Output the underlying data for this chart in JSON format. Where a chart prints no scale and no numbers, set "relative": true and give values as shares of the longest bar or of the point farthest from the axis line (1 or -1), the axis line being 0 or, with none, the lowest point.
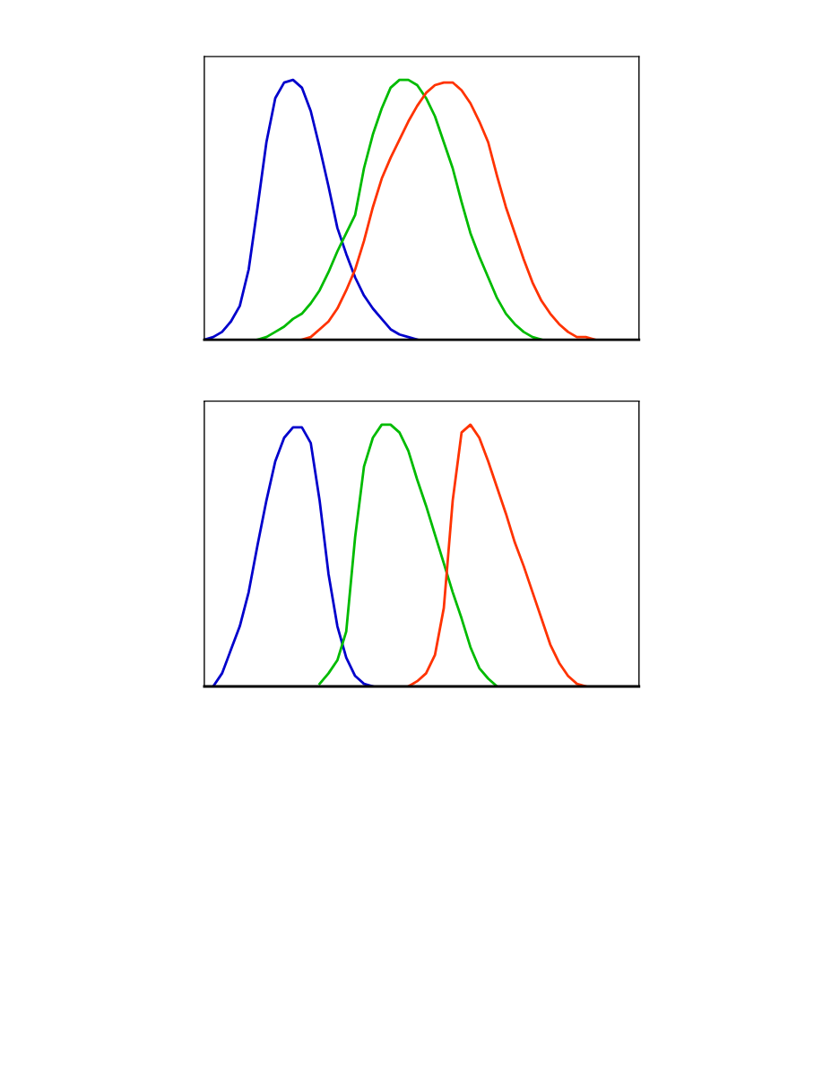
{
  "chart_data": [
    {
      "type": "line",
      "relative": true,
      "categories": [
        null,
        null,
        null,
        null,
        null,
        null,
        null,
        null,
        null,
        null,
        null,
        null,
        null,
        null,
        null,
        null,
        null,
        null,
        null,
        null,
        null,
        null,
        null,
        null,
        null,
        null,
        null,
        null,
        null,
        null,
        null,
        null,
        null,
        null,
        null,
        null,
        null,
        null,
        null,
        null,
        null,
        null,
        null,
        null,
        null,
        null,
        null,
        null,
        null,
        null
      ],
      "series": [
        {
          "color": "#0000cc",
          "values": [
            0,
            0.01,
            0.03,
            0.07,
            0.13,
            0.27,
            0.51,
            0.76,
            0.93,
            0.99,
            1.0,
            0.97,
            0.88,
            0.74,
            0.59,
            0.43,
            0.33,
            0.24,
            0.17,
            0.12,
            0.08,
            0.04,
            0.02,
            0.01,
            0,
            null,
            null,
            null,
            null,
            null,
            null,
            null,
            null,
            null,
            null,
            null,
            null,
            null,
            null,
            null,
            null,
            null,
            null,
            null,
            null,
            null,
            null,
            null,
            null,
            null
          ]
        },
        {
          "color": "#00bb00",
          "values": [
            null,
            null,
            null,
            null,
            null,
            null,
            0,
            0.01,
            0.03,
            0.05,
            0.08,
            0.1,
            0.14,
            0.19,
            0.26,
            0.34,
            0.41,
            0.48,
            0.66,
            0.79,
            0.89,
            0.97,
            1.0,
            1.0,
            0.98,
            0.93,
            0.86,
            0.76,
            0.66,
            0.53,
            0.41,
            0.32,
            0.24,
            0.16,
            0.1,
            0.06,
            0.03,
            0.01,
            0,
            null,
            null,
            null,
            null,
            null,
            null,
            null,
            null,
            null,
            null,
            null
          ]
        },
        {
          "color": "#ff3300",
          "values": [
            null,
            null,
            null,
            null,
            null,
            null,
            null,
            null,
            null,
            null,
            null,
            0,
            0.01,
            0.04,
            0.07,
            0.12,
            0.19,
            0.27,
            0.38,
            0.51,
            0.62,
            0.7,
            0.77,
            0.84,
            0.9,
            0.95,
            0.98,
            0.99,
            0.99,
            0.96,
            0.91,
            0.84,
            0.76,
            0.63,
            0.51,
            0.41,
            0.31,
            0.22,
            0.15,
            0.1,
            0.06,
            0.03,
            0.01,
            0.01,
            0,
            null,
            null,
            null,
            null,
            null
          ]
        }
      ]
    },
    {
      "type": "line",
      "relative": true,
      "categories": [
        null,
        null,
        null,
        null,
        null,
        null,
        null,
        null,
        null,
        null,
        null,
        null,
        null,
        null,
        null,
        null,
        null,
        null,
        null,
        null,
        null,
        null,
        null,
        null,
        null,
        null,
        null,
        null,
        null,
        null,
        null,
        null,
        null,
        null,
        null,
        null,
        null,
        null,
        null,
        null,
        null,
        null,
        null,
        null,
        null,
        null,
        null,
        null,
        null,
        null
      ],
      "series": [
        {
          "color": "#0000cc",
          "values": [
            null,
            0,
            0.05,
            0.14,
            0.23,
            0.36,
            0.54,
            0.71,
            0.86,
            0.95,
            0.99,
            0.99,
            0.93,
            0.71,
            0.43,
            0.23,
            0.11,
            0.04,
            0.01,
            0,
            null,
            null,
            null,
            null,
            null,
            null,
            null,
            null,
            null,
            null,
            null,
            null,
            null,
            null,
            null,
            null,
            null,
            null,
            null,
            null,
            null,
            null,
            null,
            null,
            null,
            null,
            null,
            null,
            null,
            null
          ]
        },
        {
          "color": "#00bb00",
          "values": [
            null,
            null,
            null,
            null,
            null,
            null,
            null,
            null,
            null,
            null,
            null,
            null,
            null,
            0.01,
            0.05,
            0.1,
            0.21,
            0.57,
            0.84,
            0.95,
            1.0,
            1.0,
            0.97,
            0.9,
            0.79,
            0.69,
            0.58,
            0.47,
            0.36,
            0.26,
            0.15,
            0.07,
            0.03,
            0,
            null,
            null,
            null,
            null,
            null,
            null,
            null,
            null,
            null,
            null,
            null,
            null,
            null,
            null,
            null,
            null
          ]
        },
        {
          "color": "#ff3300",
          "values": [
            null,
            null,
            null,
            null,
            null,
            null,
            null,
            null,
            null,
            null,
            null,
            null,
            null,
            null,
            null,
            null,
            null,
            null,
            null,
            null,
            null,
            null,
            null,
            0,
            0.02,
            0.05,
            0.12,
            0.3,
            0.71,
            0.97,
            1.0,
            0.95,
            0.86,
            0.76,
            0.66,
            0.55,
            0.46,
            0.36,
            0.26,
            0.16,
            0.09,
            0.04,
            0.01,
            0,
            null,
            null,
            null,
            null,
            null,
            null
          ]
        }
      ]
    }
  ]
}
